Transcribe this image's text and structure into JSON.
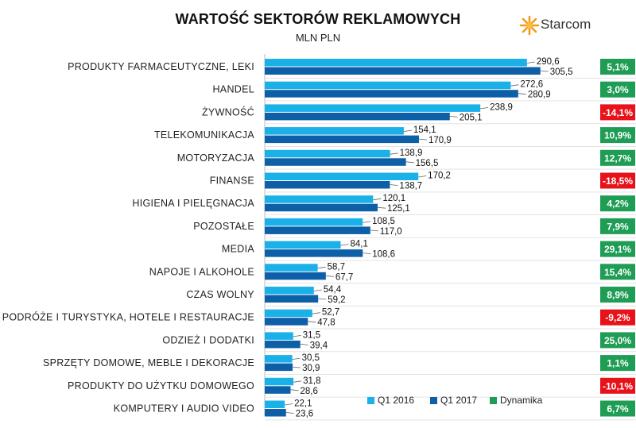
{
  "title": "WARTOŚĆ SEKTORÓW REKLAMOWYCH",
  "subtitle": "MLN PLN",
  "logo": {
    "name": "starcom-logo",
    "text": "Starcom"
  },
  "colors": {
    "q1_2016": "#1ab0e8",
    "q1_2017": "#0d5fa8",
    "positive": "#1f9d55",
    "negative": "#e8121a"
  },
  "chart_data": {
    "type": "bar",
    "orientation": "horizontal",
    "categories": [
      "PRODUKTY FARMACEUTYCZNE, LEKI",
      "HANDEL",
      "ŻYWNOŚĆ",
      "TELEKOMUNIKACJA",
      "MOTORYZACJA",
      "FINANSE",
      "HIGIENA I PIELĘGNACJA",
      "POZOSTAŁE",
      "MEDIA",
      "NAPOJE I ALKOHOLE",
      "CZAS WOLNY",
      "PODRÓŻE I TURYSTYKA, HOTELE I RESTAURACJE",
      "ODZIEŻ I DODATKI",
      "SPRZĘTY DOMOWE, MEBLE I DEKORACJE",
      "PRODUKTY DO UŻYTKU DOMOWEGO",
      "KOMPUTERY I AUDIO VIDEO"
    ],
    "series": [
      {
        "name": "Q1 2016",
        "values": [
          290.6,
          272.6,
          238.9,
          154.1,
          138.9,
          170.2,
          120.1,
          108.5,
          84.1,
          58.7,
          54.4,
          52.7,
          31.5,
          30.5,
          31.8,
          22.1
        ],
        "labels": [
          "290,6",
          "272,6",
          "238,9",
          "154,1",
          "138,9",
          "170,2",
          "120,1",
          "108,5",
          "84,1",
          "58,7",
          "54,4",
          "52,7",
          "31,5",
          "30,5",
          "31,8",
          "22,1"
        ]
      },
      {
        "name": "Q1 2017",
        "values": [
          305.5,
          280.9,
          205.1,
          170.9,
          156.5,
          138.7,
          125.1,
          117.0,
          108.6,
          67.7,
          59.2,
          47.8,
          39.4,
          30.9,
          28.6,
          23.6
        ],
        "labels": [
          "305,5",
          "280,9",
          "205,1",
          "170,9",
          "156,5",
          "138,7",
          "125,1",
          "117,0",
          "108,6",
          "67,7",
          "59,2",
          "47,8",
          "39,4",
          "30,9",
          "28,6",
          "23,6"
        ]
      }
    ],
    "dynamika": {
      "name": "Dynamika",
      "values": [
        5.1,
        3.0,
        -14.1,
        10.9,
        12.7,
        -18.5,
        4.2,
        7.9,
        29.1,
        15.4,
        8.9,
        -9.2,
        25.0,
        1.1,
        -10.1,
        6.7
      ],
      "labels": [
        "5,1%",
        "3,0%",
        "-14,1%",
        "10,9%",
        "12,7%",
        "-18,5%",
        "4,2%",
        "7,9%",
        "29,1%",
        "15,4%",
        "8,9%",
        "-9,2%",
        "25,0%",
        "1,1%",
        "-10,1%",
        "6,7%"
      ]
    },
    "xlim": [
      0,
      320
    ],
    "grid": false,
    "legend_position": "bottom"
  }
}
